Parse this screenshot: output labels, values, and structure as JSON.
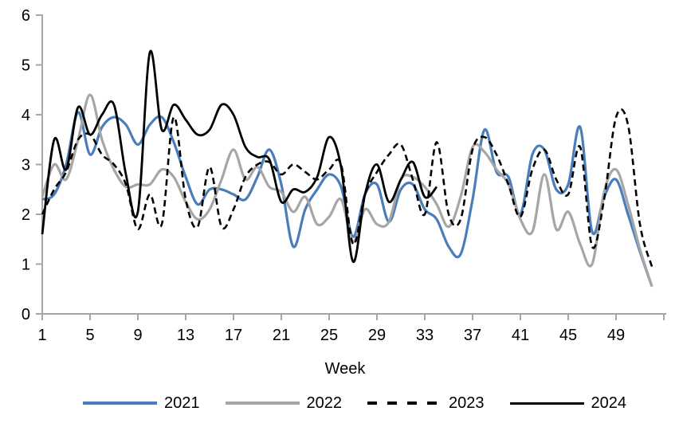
{
  "chart_data": {
    "type": "line",
    "title": "",
    "xlabel": "Week",
    "ylabel": "",
    "grid": false,
    "legend_position": "bottom",
    "axis_color": "#a6a6a6",
    "xlim": [
      1,
      53
    ],
    "ylim": [
      0,
      6
    ],
    "x_ticks": [
      1,
      5,
      9,
      13,
      17,
      21,
      25,
      29,
      33,
      37,
      41,
      45,
      49
    ],
    "y_ticks": [
      0,
      1,
      2,
      3,
      4,
      5,
      6
    ],
    "x": [
      1,
      2,
      3,
      4,
      5,
      6,
      7,
      8,
      9,
      10,
      11,
      12,
      13,
      14,
      15,
      16,
      17,
      18,
      19,
      20,
      21,
      22,
      23,
      24,
      25,
      26,
      27,
      28,
      29,
      30,
      31,
      32,
      33,
      34,
      35,
      36,
      37,
      38,
      39,
      40,
      41,
      42,
      43,
      44,
      45,
      46,
      47,
      48,
      49,
      50,
      51,
      52
    ],
    "series": [
      {
        "name": "2021",
        "color": "#4a7ebb",
        "style": "solid",
        "values": [
          2.3,
          2.4,
          3.0,
          4.05,
          3.2,
          3.75,
          3.95,
          3.8,
          3.4,
          3.8,
          3.95,
          3.45,
          2.75,
          2.2,
          2.5,
          2.5,
          2.4,
          2.3,
          2.75,
          3.3,
          2.6,
          1.35,
          2.1,
          2.5,
          2.8,
          2.55,
          1.55,
          2.4,
          2.6,
          1.85,
          2.5,
          2.6,
          2.1,
          1.9,
          1.35,
          1.2,
          2.3,
          3.7,
          2.85,
          2.75,
          2.0,
          3.2,
          3.3,
          2.5,
          2.6,
          3.75,
          1.65,
          2.35,
          2.7,
          2.0,
          1.25,
          0.55
        ]
      },
      {
        "name": "2022",
        "color": "#a6a6a6",
        "style": "solid",
        "values": [
          2.35,
          3.0,
          2.7,
          3.5,
          4.4,
          3.5,
          2.9,
          2.55,
          2.6,
          2.6,
          2.9,
          2.75,
          2.25,
          1.9,
          2.1,
          2.7,
          3.3,
          2.7,
          2.95,
          2.55,
          2.45,
          2.05,
          2.35,
          1.8,
          1.95,
          2.3,
          1.45,
          2.1,
          1.8,
          1.85,
          2.7,
          2.75,
          2.55,
          2.2,
          1.75,
          2.35,
          3.35,
          3.25,
          2.9,
          2.6,
          1.9,
          1.65,
          2.8,
          1.7,
          2.05,
          1.4,
          1.0,
          2.45,
          2.9,
          2.2,
          1.3,
          0.55
        ]
      },
      {
        "name": "2023",
        "color": "#000000",
        "style": "dashed",
        "values": [
          2.0,
          2.5,
          2.85,
          3.5,
          3.6,
          3.2,
          3.0,
          2.6,
          1.7,
          2.4,
          1.8,
          3.95,
          2.3,
          1.75,
          2.95,
          1.75,
          2.1,
          2.75,
          3.0,
          3.05,
          2.8,
          3.0,
          2.85,
          2.7,
          2.9,
          3.0,
          1.4,
          2.4,
          2.85,
          3.2,
          3.4,
          2.7,
          2.0,
          3.45,
          2.0,
          1.9,
          3.3,
          3.55,
          3.2,
          2.6,
          1.95,
          2.9,
          3.3,
          2.7,
          2.4,
          3.35,
          1.35,
          2.3,
          3.95,
          3.8,
          1.8,
          0.95
        ]
      },
      {
        "name": "2024",
        "color": "#000000",
        "style": "solid",
        "values": [
          1.6,
          3.5,
          2.9,
          4.15,
          3.6,
          4.0,
          4.2,
          2.8,
          2.05,
          5.25,
          3.7,
          4.2,
          3.9,
          3.6,
          3.7,
          4.2,
          4.0,
          3.35,
          3.15,
          3.1,
          2.25,
          2.5,
          2.45,
          2.75,
          3.55,
          2.95,
          1.05,
          2.4,
          3.0,
          2.25,
          2.7,
          3.05,
          2.35,
          2.55
        ]
      }
    ]
  },
  "legend": {
    "item_2021": "2021",
    "item_2022": "2022",
    "item_2023": "2023",
    "item_2024": "2024"
  }
}
